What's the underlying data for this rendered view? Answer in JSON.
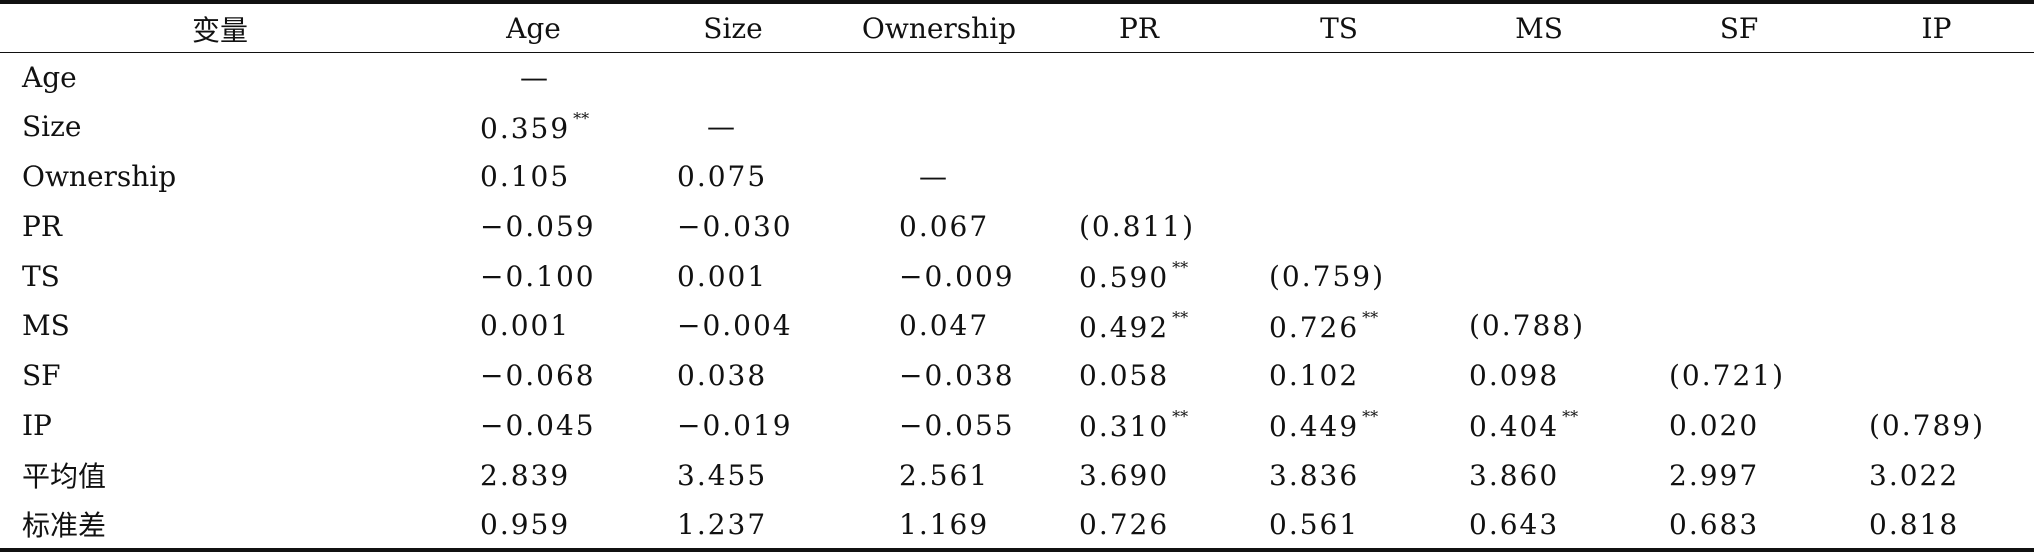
{
  "columns": [
    "变量",
    "Age",
    "Size",
    "Ownership",
    "PR",
    "TS",
    "MS",
    "SF",
    "IP"
  ],
  "rows": [
    {
      "label": "Age",
      "cells": [
        "—",
        "",
        "",
        "",
        "",
        "",
        "",
        ""
      ],
      "stars": [
        "",
        "",
        "",
        "",
        "",
        "",
        "",
        ""
      ]
    },
    {
      "label": "Size",
      "cells": [
        "0.359",
        "—",
        "",
        "",
        "",
        "",
        "",
        ""
      ],
      "stars": [
        "**",
        "",
        "",
        "",
        "",
        "",
        "",
        ""
      ]
    },
    {
      "label": "Ownership",
      "cells": [
        "0.105",
        "0.075",
        "—",
        "",
        "",
        "",
        "",
        ""
      ],
      "stars": [
        "",
        "",
        "",
        "",
        "",
        "",
        "",
        ""
      ]
    },
    {
      "label": "PR",
      "cells": [
        "−0.059",
        "−0.030",
        "0.067",
        "(0.811)",
        "",
        "",
        "",
        ""
      ],
      "stars": [
        "",
        "",
        "",
        "",
        "",
        "",
        "",
        ""
      ]
    },
    {
      "label": "TS",
      "cells": [
        "−0.100",
        "0.001",
        "−0.009",
        "0.590",
        "(0.759)",
        "",
        "",
        ""
      ],
      "stars": [
        "",
        "",
        "",
        "**",
        "",
        "",
        "",
        ""
      ]
    },
    {
      "label": "MS",
      "cells": [
        "0.001",
        "−0.004",
        "0.047",
        "0.492",
        "0.726",
        "(0.788)",
        "",
        ""
      ],
      "stars": [
        "",
        "",
        "",
        "**",
        "**",
        "",
        "",
        ""
      ]
    },
    {
      "label": "SF",
      "cells": [
        "−0.068",
        "0.038",
        "−0.038",
        "0.058",
        "0.102",
        "0.098",
        "(0.721)",
        ""
      ],
      "stars": [
        "",
        "",
        "",
        "",
        "",
        "",
        "",
        ""
      ]
    },
    {
      "label": "IP",
      "cells": [
        "−0.045",
        "−0.019",
        "−0.055",
        "0.310",
        "0.449",
        "0.404",
        "0.020",
        "(0.789)"
      ],
      "stars": [
        "",
        "",
        "",
        "**",
        "**",
        "**",
        "",
        ""
      ]
    },
    {
      "label": "平均值",
      "cells": [
        "2.839",
        "3.455",
        "2.561",
        "3.690",
        "3.836",
        "3.860",
        "2.997",
        "3.022"
      ],
      "stars": [
        "",
        "",
        "",
        "",
        "",
        "",
        "",
        ""
      ]
    },
    {
      "label": "标准差",
      "cells": [
        "0.959",
        "1.237",
        "1.169",
        "0.726",
        "0.561",
        "0.643",
        "0.683",
        "0.818"
      ],
      "stars": [
        "",
        "",
        "",
        "",
        "",
        "",
        "",
        ""
      ]
    }
  ]
}
